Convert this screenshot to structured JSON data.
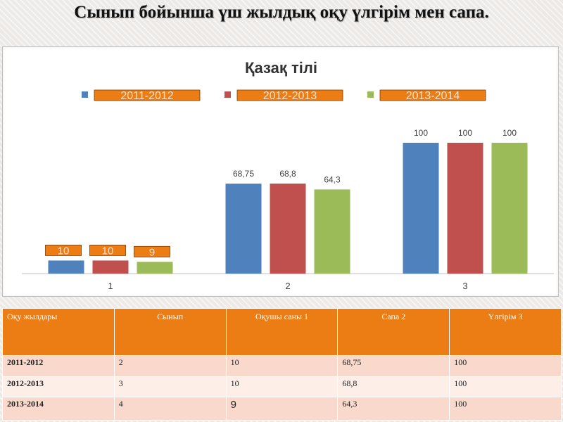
{
  "slide_title": "Сынып бойынша үш жылдық оқу үлгірім мен сапа.",
  "chart_data": {
    "type": "bar",
    "title": "Қазақ тілі",
    "categories": [
      "1",
      "2",
      "3"
    ],
    "series": [
      {
        "name": "2011-2012",
        "color": "#4f81bd",
        "values": [
          10,
          68.75,
          100
        ],
        "labels": [
          "10",
          "68,75",
          "100"
        ]
      },
      {
        "name": "2012-2013",
        "color": "#c0504d",
        "values": [
          10,
          68.8,
          100
        ],
        "labels": [
          "10",
          "68,8",
          "100"
        ]
      },
      {
        "name": "2013-2014",
        "color": "#9bbb59",
        "values": [
          9,
          64.3,
          100
        ],
        "labels": [
          "9",
          "64,3",
          "100"
        ]
      }
    ],
    "ylim": [
      0,
      130
    ],
    "grid": false,
    "legend_position": "top",
    "legend_box_color": "#ec7c14"
  },
  "table": {
    "headers": [
      "Оқу жылдары",
      "Сынып",
      "Оқушы саны 1",
      "Сапа 2",
      "Үлгірім 3"
    ],
    "rows": [
      [
        "2011-2012",
        "2",
        "10",
        "68,75",
        "100"
      ],
      [
        "2012-2013",
        "3",
        "10",
        "68,8",
        "100"
      ],
      [
        "2013-2014",
        "4",
        "9",
        "64,3",
        "100"
      ]
    ]
  }
}
